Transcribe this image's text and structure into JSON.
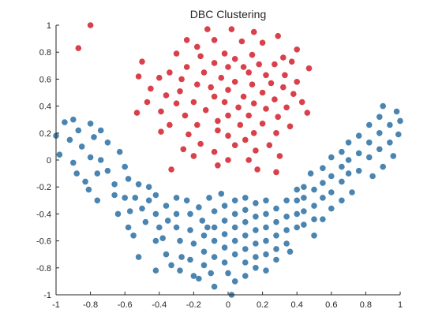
{
  "chart_data": {
    "type": "scatter",
    "title": "DBC Clustering",
    "xlabel": "",
    "ylabel": "",
    "xlim": [
      -1,
      1
    ],
    "ylim": [
      -1,
      1
    ],
    "xticks": [
      -1,
      -0.8,
      -0.6,
      -0.4,
      -0.2,
      0,
      0.2,
      0.4,
      0.6,
      0.8,
      1
    ],
    "yticks": [
      -1,
      -0.8,
      -0.6,
      -0.4,
      -0.2,
      0,
      0.2,
      0.4,
      0.6,
      0.8,
      1
    ],
    "xtick_labels": [
      "-1",
      "-0.8",
      "-0.6",
      "-0.4",
      "-0.2",
      "0",
      "0.2",
      "0.4",
      "0.6",
      "0.8",
      "1"
    ],
    "ytick_labels": [
      "-1",
      "-0.8",
      "-0.6",
      "-0.4",
      "-0.2",
      "0",
      "0.2",
      "0.4",
      "0.6",
      "0.8",
      "1"
    ],
    "grid": false,
    "legend": "none",
    "series": [
      {
        "color": "#d9404a",
        "points": [
          [
            -0.8,
            1.0
          ],
          [
            -0.87,
            0.83
          ],
          [
            -0.12,
            0.97
          ],
          [
            0.02,
            0.97
          ],
          [
            0.15,
            0.95
          ],
          [
            0.29,
            0.92
          ],
          [
            -0.24,
            0.89
          ],
          [
            -0.08,
            0.89
          ],
          [
            0.08,
            0.88
          ],
          [
            0.2,
            0.87
          ],
          [
            -0.18,
            0.84
          ],
          [
            0.4,
            0.82
          ],
          [
            -0.3,
            0.79
          ],
          [
            -0.02,
            0.79
          ],
          [
            0.14,
            0.78
          ],
          [
            -0.16,
            0.77
          ],
          [
            0.32,
            0.76
          ],
          [
            0.04,
            0.75
          ],
          [
            -0.5,
            0.73
          ],
          [
            -0.08,
            0.72
          ],
          [
            0.18,
            0.71
          ],
          [
            0.27,
            0.71
          ],
          [
            -0.24,
            0.69
          ],
          [
            0.0,
            0.69
          ],
          [
            0.09,
            0.69
          ],
          [
            0.37,
            0.73
          ],
          [
            0.47,
            0.68
          ],
          [
            -0.34,
            0.65
          ],
          [
            -0.14,
            0.65
          ],
          [
            0.12,
            0.65
          ],
          [
            0.22,
            0.63
          ],
          [
            0.33,
            0.63
          ],
          [
            -0.52,
            0.62
          ],
          [
            -0.4,
            0.61
          ],
          [
            -0.27,
            0.6
          ],
          [
            -0.04,
            0.61
          ],
          [
            0.04,
            0.58
          ],
          [
            0.25,
            0.57
          ],
          [
            0.4,
            0.58
          ],
          [
            -0.18,
            0.56
          ],
          [
            -0.1,
            0.54
          ],
          [
            0.14,
            0.56
          ],
          [
            0.32,
            0.54
          ],
          [
            -0.45,
            0.53
          ],
          [
            0.0,
            0.52
          ],
          [
            0.2,
            0.5
          ],
          [
            0.38,
            0.49
          ],
          [
            -0.28,
            0.51
          ],
          [
            -0.36,
            0.48
          ],
          [
            -0.08,
            0.47
          ],
          [
            0.09,
            0.47
          ],
          [
            0.27,
            0.45
          ],
          [
            -0.47,
            0.43
          ],
          [
            -0.2,
            0.43
          ],
          [
            -0.02,
            0.43
          ],
          [
            0.15,
            0.42
          ],
          [
            0.43,
            0.43
          ],
          [
            -0.3,
            0.42
          ],
          [
            0.06,
            0.39
          ],
          [
            0.22,
            0.38
          ],
          [
            0.34,
            0.39
          ],
          [
            -0.39,
            0.36
          ],
          [
            -0.13,
            0.37
          ],
          [
            -0.25,
            0.33
          ],
          [
            0.0,
            0.33
          ],
          [
            0.12,
            0.33
          ],
          [
            -0.53,
            0.35
          ],
          [
            0.29,
            0.32
          ],
          [
            0.46,
            0.35
          ],
          [
            -0.06,
            0.29
          ],
          [
            0.2,
            0.27
          ],
          [
            -0.34,
            0.26
          ],
          [
            -0.18,
            0.26
          ],
          [
            0.07,
            0.26
          ],
          [
            0.36,
            0.25
          ],
          [
            -0.06,
            0.22
          ],
          [
            0.15,
            0.2
          ],
          [
            0.28,
            0.2
          ],
          [
            -0.39,
            0.21
          ],
          [
            -0.23,
            0.19
          ],
          [
            0.0,
            0.18
          ],
          [
            0.1,
            0.15
          ],
          [
            -0.16,
            0.12
          ],
          [
            0.04,
            0.11
          ],
          [
            0.24,
            0.11
          ],
          [
            -0.26,
            0.08
          ],
          [
            0.16,
            0.07
          ],
          [
            -0.08,
            0.06
          ],
          [
            0.3,
            0.03
          ],
          [
            -0.2,
            0.03
          ],
          [
            0.0,
            0.0
          ],
          [
            0.12,
            0.0
          ],
          [
            -0.06,
            -0.04
          ],
          [
            0.17,
            -0.07
          ],
          [
            -0.33,
            -0.07
          ],
          [
            0.28,
            -0.09
          ]
        ]
      },
      {
        "color": "#4a84b0",
        "points": [
          [
            -1.0,
            0.18
          ],
          [
            -0.98,
            0.04
          ],
          [
            -0.95,
            0.28
          ],
          [
            -0.9,
            0.3
          ],
          [
            -0.92,
            0.15
          ],
          [
            -0.87,
            0.22
          ],
          [
            -0.85,
            0.1
          ],
          [
            -0.8,
            0.27
          ],
          [
            -0.78,
            0.17
          ],
          [
            -0.8,
            0.02
          ],
          [
            -0.9,
            -0.02
          ],
          [
            -0.88,
            -0.1
          ],
          [
            -0.83,
            -0.16
          ],
          [
            -0.74,
            0.22
          ],
          [
            -0.7,
            0.13
          ],
          [
            -0.74,
            0.0
          ],
          [
            -0.7,
            -0.08
          ],
          [
            -0.76,
            -0.1
          ],
          [
            -0.81,
            -0.22
          ],
          [
            -0.76,
            -0.3
          ],
          [
            -0.63,
            0.06
          ],
          [
            -0.6,
            -0.05
          ],
          [
            -0.66,
            -0.18
          ],
          [
            -0.58,
            -0.14
          ],
          [
            -0.66,
            -0.26
          ],
          [
            -0.6,
            -0.28
          ],
          [
            -0.64,
            -0.4
          ],
          [
            -0.57,
            -0.38
          ],
          [
            -0.58,
            -0.5
          ],
          [
            -0.52,
            -0.18
          ],
          [
            -0.54,
            -0.28
          ],
          [
            -0.5,
            -0.36
          ],
          [
            -0.48,
            -0.46
          ],
          [
            -0.46,
            -0.2
          ],
          [
            -0.46,
            -0.3
          ],
          [
            -0.42,
            -0.4
          ],
          [
            -0.4,
            -0.5
          ],
          [
            -0.42,
            -0.26
          ],
          [
            -0.36,
            -0.34
          ],
          [
            -0.35,
            -0.45
          ],
          [
            -0.38,
            -0.58
          ],
          [
            -0.55,
            -0.56
          ],
          [
            -0.42,
            -0.6
          ],
          [
            -0.52,
            -0.72
          ],
          [
            -0.36,
            -0.7
          ],
          [
            -0.42,
            -0.82
          ],
          [
            -0.33,
            -0.78
          ],
          [
            -0.3,
            -0.28
          ],
          [
            -0.3,
            -0.4
          ],
          [
            -0.3,
            -0.5
          ],
          [
            -0.28,
            -0.6
          ],
          [
            -0.27,
            -0.72
          ],
          [
            -0.28,
            -0.82
          ],
          [
            -0.24,
            -0.3
          ],
          [
            -0.22,
            -0.4
          ],
          [
            -0.22,
            -0.52
          ],
          [
            -0.2,
            -0.62
          ],
          [
            -0.22,
            -0.74
          ],
          [
            -0.2,
            -0.86
          ],
          [
            -0.17,
            -0.35
          ],
          [
            -0.15,
            -0.45
          ],
          [
            -0.14,
            -0.56
          ],
          [
            -0.14,
            -0.68
          ],
          [
            -0.14,
            -0.78
          ],
          [
            -0.17,
            -0.88
          ],
          [
            -0.11,
            -0.28
          ],
          [
            -0.08,
            -0.38
          ],
          [
            -0.08,
            -0.5
          ],
          [
            -0.08,
            -0.6
          ],
          [
            -0.08,
            -0.72
          ],
          [
            -0.1,
            -0.84
          ],
          [
            -0.08,
            -0.94
          ],
          [
            -0.04,
            -0.25
          ],
          [
            -0.02,
            -0.34
          ],
          [
            -0.02,
            -0.45
          ],
          [
            -0.02,
            -0.55
          ],
          [
            -0.02,
            -0.65
          ],
          [
            -0.02,
            -0.76
          ],
          [
            0.0,
            -0.84
          ],
          [
            0.04,
            -0.3
          ],
          [
            0.04,
            -0.4
          ],
          [
            0.04,
            -0.5
          ],
          [
            0.04,
            -0.6
          ],
          [
            0.04,
            -0.7
          ],
          [
            0.04,
            -0.9
          ],
          [
            0.1,
            -0.28
          ],
          [
            0.1,
            -0.37
          ],
          [
            0.1,
            -0.46
          ],
          [
            0.1,
            -0.56
          ],
          [
            0.1,
            -0.66
          ],
          [
            0.1,
            -0.76
          ],
          [
            0.1,
            -0.86
          ],
          [
            0.16,
            -0.32
          ],
          [
            0.16,
            -0.42
          ],
          [
            0.16,
            -0.52
          ],
          [
            0.16,
            -0.62
          ],
          [
            0.16,
            -0.72
          ],
          [
            0.16,
            -0.8
          ],
          [
            0.22,
            -0.3
          ],
          [
            0.22,
            -0.4
          ],
          [
            0.22,
            -0.5
          ],
          [
            0.22,
            -0.6
          ],
          [
            0.22,
            -0.7
          ],
          [
            0.22,
            -0.82
          ],
          [
            0.28,
            -0.36
          ],
          [
            0.28,
            -0.46
          ],
          [
            0.28,
            -0.56
          ],
          [
            0.28,
            -0.66
          ],
          [
            0.28,
            -0.74
          ],
          [
            0.34,
            -0.3
          ],
          [
            0.34,
            -0.42
          ],
          [
            0.34,
            -0.52
          ],
          [
            0.34,
            -0.62
          ],
          [
            0.36,
            -0.68
          ],
          [
            0.4,
            -0.22
          ],
          [
            0.4,
            -0.3
          ],
          [
            0.4,
            -0.4
          ],
          [
            0.4,
            -0.5
          ],
          [
            0.44,
            -0.2
          ],
          [
            0.44,
            -0.28
          ],
          [
            0.44,
            -0.38
          ],
          [
            0.44,
            -0.48
          ],
          [
            0.48,
            -0.1
          ],
          [
            0.5,
            -0.22
          ],
          [
            0.5,
            -0.34
          ],
          [
            0.5,
            -0.44
          ],
          [
            0.5,
            -0.56
          ],
          [
            0.55,
            -0.06
          ],
          [
            0.55,
            -0.17
          ],
          [
            0.55,
            -0.28
          ],
          [
            0.55,
            -0.44
          ],
          [
            0.6,
            0.02
          ],
          [
            0.6,
            -0.12
          ],
          [
            0.6,
            -0.24
          ],
          [
            0.6,
            -0.36
          ],
          [
            0.66,
            0.06
          ],
          [
            0.66,
            -0.05
          ],
          [
            0.66,
            -0.16
          ],
          [
            0.66,
            -0.3
          ],
          [
            0.7,
            0.13
          ],
          [
            0.7,
            0.0
          ],
          [
            0.7,
            -0.1
          ],
          [
            0.72,
            -0.24
          ],
          [
            0.76,
            0.18
          ],
          [
            0.76,
            0.05
          ],
          [
            0.76,
            -0.08
          ],
          [
            0.82,
            0.26
          ],
          [
            0.82,
            0.13
          ],
          [
            0.82,
            0.02
          ],
          [
            0.84,
            -0.12
          ],
          [
            0.88,
            0.32
          ],
          [
            0.88,
            0.2
          ],
          [
            0.88,
            0.08
          ],
          [
            0.9,
            -0.05
          ],
          [
            0.94,
            0.26
          ],
          [
            0.94,
            0.13
          ],
          [
            0.96,
            0.03
          ],
          [
            0.98,
            0.36
          ],
          [
            0.99,
            0.19
          ],
          [
            1.0,
            0.29
          ],
          [
            0.9,
            0.4
          ],
          [
            -0.12,
            -0.5
          ],
          [
            0.02,
            -1.0
          ]
        ]
      }
    ]
  }
}
